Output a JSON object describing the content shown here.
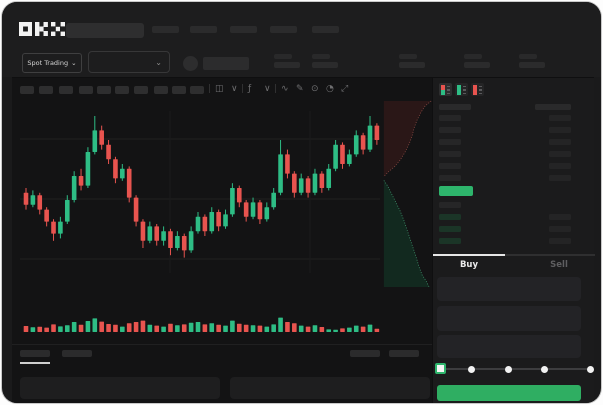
{
  "brand": {
    "logo": "OKX"
  },
  "colors": {
    "candle_up": "#2ebd85",
    "candle_down": "#e8544f",
    "accent_green": "#2eb56c",
    "button_green": "#2fae62",
    "bid_row_tint": "#1b3527",
    "skeleton": "#2b2b2c",
    "grid_line": "#202021",
    "depth_ask_fill": "#2a1717",
    "depth_ask_line": "#8a4a44",
    "depth_bid_fill": "#12291f",
    "depth_bid_line": "#3f8f6b",
    "tab_underline": "#e6e6e6"
  },
  "header": {
    "market_selector_label": "Spot Trading",
    "nav_placeholder_count": 5,
    "stat_placeholder_count": 5
  },
  "toolbar": {
    "timeframe_placeholder_count": 10,
    "icons": [
      "candle-style-icon",
      "chevron-down-icon",
      "indicators-icon",
      "chevron-down-icon",
      "line-tool-icon",
      "draw-tool-icon",
      "snapshot-icon",
      "history-icon",
      "fullscreen-icon"
    ]
  },
  "orderbook": {
    "view_modes": [
      "combined-book-view",
      "bids-only-view",
      "asks-only-view"
    ],
    "ask_row_count": 6,
    "price_row_highlight": "green",
    "bid_rows": [
      "plain",
      "tinted",
      "tinted",
      "tinted"
    ]
  },
  "trade_form": {
    "tabs": {
      "buy": "Buy",
      "sell": "Sell",
      "active": "buy"
    },
    "field_placeholder_count": 3,
    "slider": {
      "stop_count": 5,
      "selected_index": 0
    }
  },
  "chart_data": [
    {
      "type": "candlestick",
      "title": "",
      "x_axis": "time (unlabeled)",
      "y_axis": "price (unlabeled, normalized 0-100)",
      "grid": "faint horizontal lines",
      "candles_ohlc": [
        [
          56,
          58,
          49,
          51
        ],
        [
          51,
          57,
          50,
          55
        ],
        [
          55,
          56,
          47,
          49
        ],
        [
          49,
          50,
          42,
          44
        ],
        [
          44,
          45,
          36,
          39
        ],
        [
          39,
          46,
          37,
          44
        ],
        [
          44,
          55,
          43,
          53
        ],
        [
          53,
          65,
          52,
          63
        ],
        [
          63,
          66,
          57,
          59
        ],
        [
          59,
          75,
          58,
          73
        ],
        [
          73,
          88,
          72,
          82
        ],
        [
          82,
          84,
          74,
          76
        ],
        [
          76,
          78,
          68,
          70
        ],
        [
          70,
          71,
          60,
          62
        ],
        [
          62,
          68,
          61,
          66
        ],
        [
          66,
          67,
          52,
          54
        ],
        [
          54,
          55,
          42,
          44
        ],
        [
          44,
          45,
          33,
          36
        ],
        [
          36,
          44,
          35,
          42
        ],
        [
          42,
          43,
          34,
          36
        ],
        [
          36,
          42,
          34,
          40
        ],
        [
          40,
          41,
          30,
          33
        ],
        [
          33,
          40,
          32,
          38
        ],
        [
          38,
          39,
          29,
          32
        ],
        [
          32,
          42,
          31,
          40
        ],
        [
          40,
          48,
          39,
          46
        ],
        [
          46,
          47,
          38,
          40
        ],
        [
          40,
          50,
          39,
          48
        ],
        [
          48,
          49,
          40,
          42
        ],
        [
          42,
          49,
          41,
          47
        ],
        [
          47,
          60,
          46,
          58
        ],
        [
          58,
          59,
          50,
          52
        ],
        [
          52,
          53,
          44,
          46
        ],
        [
          46,
          54,
          45,
          52
        ],
        [
          52,
          53,
          43,
          45
        ],
        [
          45,
          52,
          44,
          50
        ],
        [
          50,
          58,
          49,
          56
        ],
        [
          56,
          78,
          55,
          72
        ],
        [
          72,
          74,
          62,
          64
        ],
        [
          64,
          65,
          54,
          56
        ],
        [
          56,
          64,
          55,
          62
        ],
        [
          62,
          63,
          54,
          56
        ],
        [
          56,
          66,
          55,
          64
        ],
        [
          64,
          65,
          56,
          58
        ],
        [
          58,
          68,
          57,
          66
        ],
        [
          66,
          78,
          65,
          76
        ],
        [
          76,
          77,
          66,
          68
        ],
        [
          68,
          74,
          67,
          72
        ],
        [
          72,
          82,
          71,
          80
        ],
        [
          80,
          81,
          72,
          74
        ],
        [
          74,
          88,
          73,
          84
        ],
        [
          84,
          85,
          76,
          78
        ]
      ]
    },
    {
      "type": "bar",
      "title": "volume (unlabeled, normalized 0-100)",
      "color_by": "candle direction",
      "values": [
        30,
        24,
        26,
        22,
        38,
        28,
        34,
        50,
        36,
        55,
        68,
        52,
        40,
        36,
        27,
        44,
        50,
        57,
        36,
        32,
        27,
        41,
        34,
        38,
        46,
        50,
        38,
        44,
        36,
        32,
        57,
        41,
        36,
        34,
        32,
        27,
        38,
        72,
        50,
        44,
        32,
        27,
        34,
        25,
        13,
        11,
        18,
        22,
        32,
        27,
        37,
        16
      ]
    },
    {
      "type": "area",
      "title": "market depth (vertical, asks top / bids bottom)",
      "asks_steps": [
        [
          48,
          3
        ],
        [
          42,
          8
        ],
        [
          38,
          14
        ],
        [
          34,
          22
        ],
        [
          31,
          30
        ],
        [
          29,
          38
        ],
        [
          26,
          46
        ],
        [
          22,
          54
        ],
        [
          17,
          62
        ],
        [
          12,
          68
        ],
        [
          6,
          73
        ],
        [
          1,
          78
        ]
      ],
      "bids_steps": [
        [
          1,
          82
        ],
        [
          5,
          88
        ],
        [
          9,
          96
        ],
        [
          13,
          104
        ],
        [
          17,
          112
        ],
        [
          21,
          122
        ],
        [
          25,
          134
        ],
        [
          29,
          146
        ],
        [
          33,
          158
        ],
        [
          36,
          168
        ],
        [
          39,
          176
        ],
        [
          43,
          182
        ],
        [
          46,
          188
        ]
      ]
    }
  ]
}
